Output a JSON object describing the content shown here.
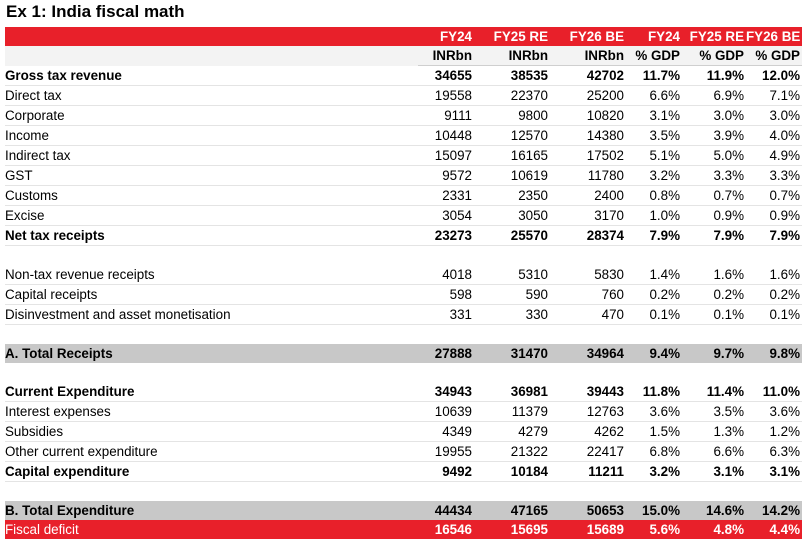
{
  "title": "Ex 1: India fiscal math",
  "headers_top": [
    "",
    "FY24",
    "FY25 RE",
    "FY26 BE",
    "FY24",
    "FY25 RE",
    "FY26 BE"
  ],
  "headers_units": [
    "",
    "INRbn",
    "INRbn",
    "INRbn",
    "% GDP",
    "% GDP",
    "% GDP"
  ],
  "rows": [
    {
      "label": "Gross tax revenue",
      "style": "bold",
      "indent": 0,
      "v": [
        "34655",
        "38535",
        "42702",
        "11.7%",
        "11.9%",
        "12.0%"
      ]
    },
    {
      "label": "Direct tax",
      "style": "",
      "indent": 1,
      "v": [
        "19558",
        "22370",
        "25200",
        "6.6%",
        "6.9%",
        "7.1%"
      ]
    },
    {
      "label": "Corporate",
      "style": "",
      "indent": 2,
      "v": [
        "9111",
        "9800",
        "10820",
        "3.1%",
        "3.0%",
        "3.0%"
      ]
    },
    {
      "label": "Income",
      "style": "",
      "indent": 2,
      "v": [
        "10448",
        "12570",
        "14380",
        "3.5%",
        "3.9%",
        "4.0%"
      ]
    },
    {
      "label": "Indirect tax",
      "style": "",
      "indent": 1,
      "v": [
        "15097",
        "16165",
        "17502",
        "5.1%",
        "5.0%",
        "4.9%"
      ]
    },
    {
      "label": "GST",
      "style": "",
      "indent": 2,
      "v": [
        "9572",
        "10619",
        "11780",
        "3.2%",
        "3.3%",
        "3.3%"
      ]
    },
    {
      "label": "Customs",
      "style": "",
      "indent": 2,
      "v": [
        "2331",
        "2350",
        "2400",
        "0.8%",
        "0.7%",
        "0.7%"
      ]
    },
    {
      "label": "Excise",
      "style": "",
      "indent": 2,
      "v": [
        "3054",
        "3050",
        "3170",
        "1.0%",
        "0.9%",
        "0.9%"
      ]
    },
    {
      "label": "Net tax receipts",
      "style": "bold",
      "indent": 0,
      "v": [
        "23273",
        "25570",
        "28374",
        "7.9%",
        "7.9%",
        "7.9%"
      ]
    },
    {
      "label": "",
      "style": "spacer",
      "indent": 0,
      "v": [
        "",
        "",
        "",
        "",
        "",
        ""
      ]
    },
    {
      "label": "Non-tax revenue receipts",
      "style": "",
      "indent": 0,
      "v": [
        "4018",
        "5310",
        "5830",
        "1.4%",
        "1.6%",
        "1.6%"
      ]
    },
    {
      "label": "Capital receipts",
      "style": "",
      "indent": 0,
      "v": [
        "598",
        "590",
        "760",
        "0.2%",
        "0.2%",
        "0.2%"
      ]
    },
    {
      "label": "Disinvestment and asset monetisation",
      "style": "",
      "indent": 2,
      "v": [
        "331",
        "330",
        "470",
        "0.1%",
        "0.1%",
        "0.1%"
      ]
    },
    {
      "label": "",
      "style": "spacer",
      "indent": 0,
      "v": [
        "",
        "",
        "",
        "",
        "",
        ""
      ]
    },
    {
      "label": "A. Total Receipts",
      "style": "shade",
      "indent": 0,
      "v": [
        "27888",
        "31470",
        "34964",
        "9.4%",
        "9.7%",
        "9.8%"
      ]
    },
    {
      "label": "",
      "style": "spacer",
      "indent": 0,
      "v": [
        "",
        "",
        "",
        "",
        "",
        ""
      ]
    },
    {
      "label": "Current Expenditure",
      "style": "bold",
      "indent": 0,
      "v": [
        "34943",
        "36981",
        "39443",
        "11.8%",
        "11.4%",
        "11.0%"
      ]
    },
    {
      "label": "Interest expenses",
      "style": "",
      "indent": 1,
      "v": [
        "10639",
        "11379",
        "12763",
        "3.6%",
        "3.5%",
        "3.6%"
      ]
    },
    {
      "label": "Subsidies",
      "style": "",
      "indent": 1,
      "v": [
        "4349",
        "4279",
        "4262",
        "1.5%",
        "1.3%",
        "1.2%"
      ]
    },
    {
      "label": "Other current expenditure",
      "style": "",
      "indent": 1,
      "v": [
        "19955",
        "21322",
        "22417",
        "6.8%",
        "6.6%",
        "6.3%"
      ]
    },
    {
      "label": "Capital expenditure",
      "style": "bold",
      "indent": 0,
      "v": [
        "9492",
        "10184",
        "11211",
        "3.2%",
        "3.1%",
        "3.1%"
      ]
    },
    {
      "label": "",
      "style": "spacer",
      "indent": 0,
      "v": [
        "",
        "",
        "",
        "",
        "",
        ""
      ]
    },
    {
      "label": "B. Total Expenditure",
      "style": "shade",
      "indent": 0,
      "v": [
        "44434",
        "47165",
        "50653",
        "15.0%",
        "14.6%",
        "14.2%"
      ]
    },
    {
      "label": "Fiscal deficit",
      "style": "red",
      "indent": 0,
      "v": [
        "16546",
        "15695",
        "15689",
        "5.6%",
        "4.8%",
        "4.4%"
      ]
    }
  ]
}
